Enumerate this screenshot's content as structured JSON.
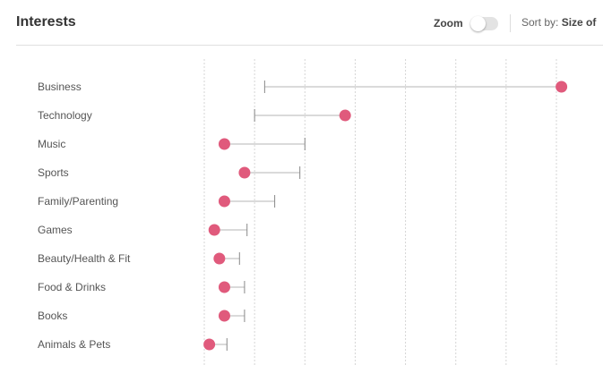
{
  "header": {
    "title": "Interests",
    "zoom_label": "Zoom",
    "zoom_on": false,
    "sort_prefix": "Sort by:",
    "sort_value": "Size of"
  },
  "colors": {
    "dot": "#e05a7c",
    "range_line": "#b5b5b5",
    "grid": "#d6d6d6"
  },
  "chart_data": {
    "type": "scatter",
    "rows": [
      {
        "label": "Business",
        "dot": 7.1,
        "tick": 1.2
      },
      {
        "label": "Technology",
        "dot": 2.8,
        "tick": 1.0
      },
      {
        "label": "Music",
        "dot": 0.4,
        "tick": 2.0
      },
      {
        "label": "Sports",
        "dot": 0.8,
        "tick": 1.9
      },
      {
        "label": "Family/Parenting",
        "dot": 0.4,
        "tick": 1.4
      },
      {
        "label": "Games",
        "dot": 0.2,
        "tick": 0.85
      },
      {
        "label": "Beauty/Health & Fit",
        "dot": 0.3,
        "tick": 0.7
      },
      {
        "label": "Food & Drinks",
        "dot": 0.4,
        "tick": 0.8
      },
      {
        "label": "Books",
        "dot": 0.4,
        "tick": 0.8
      },
      {
        "label": "Animals & Pets",
        "dot": 0.1,
        "tick": 0.45
      }
    ],
    "xlim": [
      0,
      7
    ],
    "grid": true
  }
}
